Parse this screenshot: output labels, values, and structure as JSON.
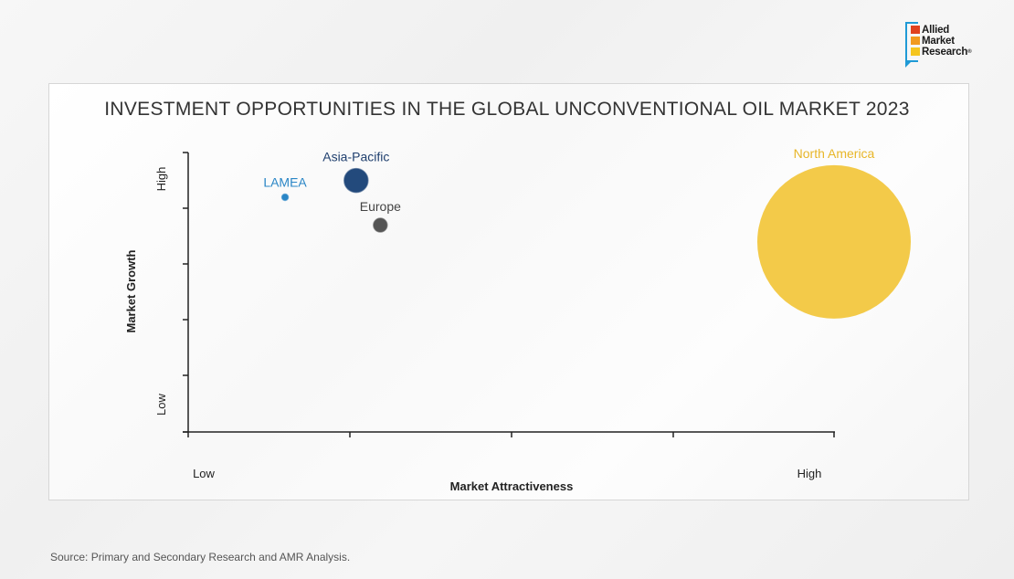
{
  "logo": {
    "line1": "Allied",
    "line2": "Market",
    "line3": "Research",
    "reg": "®"
  },
  "chart_data": {
    "type": "scatter",
    "title": "INVESTMENT OPPORTUNITIES IN THE GLOBAL UNCONVENTIONAL OIL MARKET 2023",
    "xlabel": "Market Attractiveness",
    "ylabel": "Market Growth",
    "x_tick_labels": {
      "low": "Low",
      "high": "High"
    },
    "y_tick_labels": {
      "low": "Low",
      "high": "High"
    },
    "xlim": [
      0,
      4
    ],
    "ylim": [
      0,
      5
    ],
    "grid": false,
    "bubbles": [
      {
        "name": "LAMEA",
        "x": 0.6,
        "y": 4.2,
        "size": 3.5,
        "color": "#2a86c6",
        "label_color": "#2a86c6"
      },
      {
        "name": "Asia-Pacific",
        "x": 1.04,
        "y": 4.5,
        "size": 13,
        "color": "#234a7c",
        "label_color": "#1f3f6e"
      },
      {
        "name": "Europe",
        "x": 1.19,
        "y": 3.7,
        "size": 7.5,
        "color": "#555555",
        "label_color": "#444444"
      },
      {
        "name": "North America",
        "x": 4.0,
        "y": 3.4,
        "size": 84,
        "color": "#f2c53a",
        "label_color": "#e8b628"
      }
    ]
  },
  "source": "Source: Primary and Secondary Research and AMR Analysis."
}
